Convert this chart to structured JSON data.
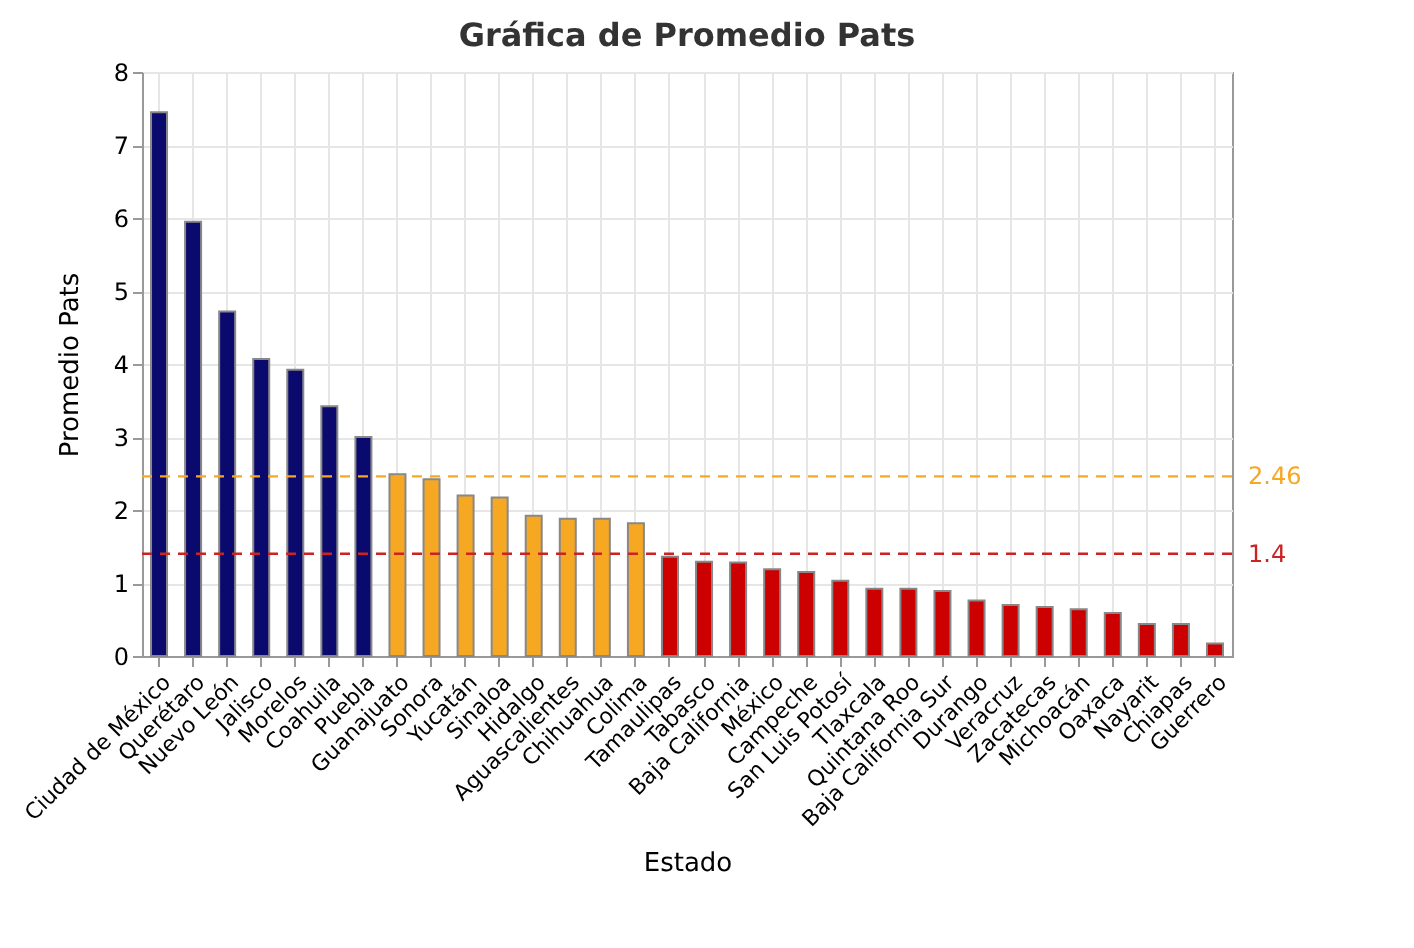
{
  "chart_data": {
    "type": "bar",
    "title": "Gráfica de Promedio Pats",
    "xlabel": "Estado",
    "ylabel": "Promedio Pats",
    "categories": [
      "Ciudad de México",
      "Querétaro",
      "Nuevo León",
      "Jalisco",
      "Morelos",
      "Coahuila",
      "Puebla",
      "Guanajuato",
      "Sonora",
      "Yucatán",
      "Sinaloa",
      "Hidalgo",
      "Aguascalientes",
      "Chihuahua",
      "Colima",
      "Tamaulipas",
      "Tabasco",
      "Baja California",
      "México",
      "Campeche",
      "San Luis Potosí",
      "Tlaxcala",
      "Quintana Roo",
      "Baja California Sur",
      "Durango",
      "Veracruz",
      "Zacatecas",
      "Michoacán",
      "Oaxaca",
      "Nayarit",
      "Chiapas",
      "Guerrero"
    ],
    "values": [
      7.45,
      5.95,
      4.72,
      4.07,
      3.92,
      3.42,
      3.0,
      2.49,
      2.42,
      2.2,
      2.17,
      1.92,
      1.88,
      1.88,
      1.82,
      1.36,
      1.29,
      1.28,
      1.19,
      1.15,
      1.03,
      0.92,
      0.92,
      0.89,
      0.76,
      0.7,
      0.67,
      0.64,
      0.59,
      0.44,
      0.44,
      0.17
    ],
    "colors": [
      "#0a0a6e",
      "#0a0a6e",
      "#0a0a6e",
      "#0a0a6e",
      "#0a0a6e",
      "#0a0a6e",
      "#0a0a6e",
      "#f7a823",
      "#f7a823",
      "#f7a823",
      "#f7a823",
      "#f7a823",
      "#f7a823",
      "#f7a823",
      "#f7a823",
      "#cc0000",
      "#cc0000",
      "#cc0000",
      "#cc0000",
      "#cc0000",
      "#cc0000",
      "#cc0000",
      "#cc0000",
      "#cc0000",
      "#cc0000",
      "#cc0000",
      "#cc0000",
      "#cc0000",
      "#cc0000",
      "#cc0000",
      "#cc0000",
      "#cc0000"
    ],
    "ylim": [
      0,
      8
    ],
    "yticks": [
      0,
      1,
      2,
      3,
      4,
      5,
      6,
      7,
      8
    ],
    "grid": true,
    "ref_lines": [
      {
        "axis": "y",
        "value": 2.46,
        "label": "2.46",
        "color": "#f7a823",
        "line_style": "dashed"
      },
      {
        "axis": "y",
        "value": 1.4,
        "label": "1.4",
        "color": "#cc2222",
        "line_style": "dashed"
      }
    ]
  }
}
